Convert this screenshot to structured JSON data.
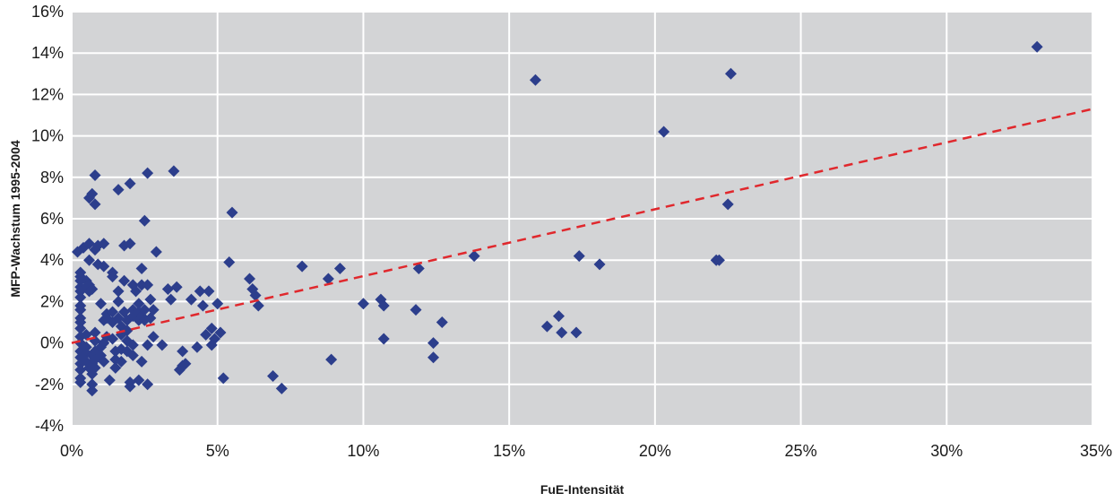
{
  "chart_data": {
    "type": "scatter",
    "title": "",
    "xlabel": "FuE-Intensität",
    "ylabel": "MFP-Wachstum 1995-2004",
    "xlim": [
      0,
      0.35
    ],
    "ylim": [
      -0.04,
      0.16
    ],
    "x_ticks": [
      {
        "value": 0.0,
        "label": "0%"
      },
      {
        "value": 0.05,
        "label": "5%"
      },
      {
        "value": 0.1,
        "label": "10%"
      },
      {
        "value": 0.15,
        "label": "15%"
      },
      {
        "value": 0.2,
        "label": "20%"
      },
      {
        "value": 0.25,
        "label": "25%"
      },
      {
        "value": 0.3,
        "label": "30%"
      },
      {
        "value": 0.35,
        "label": "35%"
      }
    ],
    "y_ticks": [
      {
        "value": -0.04,
        "label": "-4%"
      },
      {
        "value": -0.02,
        "label": "-2%"
      },
      {
        "value": 0.0,
        "label": "0%"
      },
      {
        "value": 0.02,
        "label": "2%"
      },
      {
        "value": 0.04,
        "label": "4%"
      },
      {
        "value": 0.06,
        "label": "6%"
      },
      {
        "value": 0.08,
        "label": "8%"
      },
      {
        "value": 0.1,
        "label": "10%"
      },
      {
        "value": 0.12,
        "label": "12%"
      },
      {
        "value": 0.14,
        "label": "14%"
      },
      {
        "value": 0.16,
        "label": "16%"
      }
    ],
    "grid": "vertical and horizontal",
    "colors": {
      "plot_background": "#d3d4d6",
      "gridline": "#ffffff",
      "marker": "#2c3e8c",
      "trendline": "#e0282d"
    },
    "series": [
      {
        "marker": "diamond",
        "points": [
          [
            0.002,
            0.044
          ],
          [
            0.003,
            0.034
          ],
          [
            0.003,
            0.032
          ],
          [
            0.003,
            0.03
          ],
          [
            0.003,
            0.027
          ],
          [
            0.003,
            0.025
          ],
          [
            0.003,
            0.022
          ],
          [
            0.003,
            0.018
          ],
          [
            0.003,
            0.016
          ],
          [
            0.003,
            0.012
          ],
          [
            0.003,
            0.01
          ],
          [
            0.003,
            0.007
          ],
          [
            0.003,
            0.003
          ],
          [
            0.003,
            0.0
          ],
          [
            0.003,
            -0.004
          ],
          [
            0.003,
            -0.007
          ],
          [
            0.003,
            -0.01
          ],
          [
            0.003,
            -0.013
          ],
          [
            0.003,
            -0.017
          ],
          [
            0.003,
            -0.019
          ],
          [
            0.004,
            0.046
          ],
          [
            0.005,
            0.03
          ],
          [
            0.005,
            0.027
          ],
          [
            0.006,
            0.025
          ],
          [
            0.005,
            0.004
          ],
          [
            0.005,
            -0.002
          ],
          [
            0.005,
            -0.005
          ],
          [
            0.005,
            -0.009
          ],
          [
            0.006,
            -0.012
          ],
          [
            0.006,
            0.048
          ],
          [
            0.006,
            0.04
          ],
          [
            0.006,
            0.028
          ],
          [
            0.007,
            0.026
          ],
          [
            0.006,
            0.07
          ],
          [
            0.007,
            0.072
          ],
          [
            0.007,
            -0.006
          ],
          [
            0.007,
            -0.01
          ],
          [
            0.007,
            -0.015
          ],
          [
            0.007,
            -0.02
          ],
          [
            0.007,
            -0.023
          ],
          [
            0.008,
            0.081
          ],
          [
            0.008,
            0.067
          ],
          [
            0.008,
            0.045
          ],
          [
            0.008,
            0.005
          ],
          [
            0.008,
            0.001
          ],
          [
            0.008,
            -0.004
          ],
          [
            0.008,
            -0.008
          ],
          [
            0.008,
            -0.012
          ],
          [
            0.009,
            0.047
          ],
          [
            0.009,
            0.038
          ],
          [
            0.01,
            0.019
          ],
          [
            0.01,
            -0.002
          ],
          [
            0.01,
            -0.006
          ],
          [
            0.011,
            0.048
          ],
          [
            0.011,
            0.037
          ],
          [
            0.011,
            0.011
          ],
          [
            0.011,
            0.0
          ],
          [
            0.011,
            -0.009
          ],
          [
            0.012,
            0.014
          ],
          [
            0.012,
            0.012
          ],
          [
            0.012,
            0.003
          ],
          [
            0.013,
            -0.018
          ],
          [
            0.014,
            0.034
          ],
          [
            0.014,
            0.032
          ],
          [
            0.014,
            0.015
          ],
          [
            0.014,
            0.01
          ],
          [
            0.014,
            0.002
          ],
          [
            0.015,
            -0.004
          ],
          [
            0.015,
            -0.008
          ],
          [
            0.015,
            -0.012
          ],
          [
            0.016,
            0.074
          ],
          [
            0.016,
            0.025
          ],
          [
            0.016,
            0.02
          ],
          [
            0.016,
            0.012
          ],
          [
            0.017,
            0.008
          ],
          [
            0.017,
            0.004
          ],
          [
            0.017,
            -0.003
          ],
          [
            0.017,
            -0.009
          ],
          [
            0.018,
            0.047
          ],
          [
            0.018,
            0.03
          ],
          [
            0.018,
            0.015
          ],
          [
            0.019,
            0.011
          ],
          [
            0.019,
            0.006
          ],
          [
            0.019,
            0.001
          ],
          [
            0.019,
            -0.004
          ],
          [
            0.02,
            -0.019
          ],
          [
            0.02,
            -0.021
          ],
          [
            0.02,
            0.077
          ],
          [
            0.02,
            0.048
          ],
          [
            0.021,
            0.028
          ],
          [
            0.021,
            0.016
          ],
          [
            0.021,
            0.013
          ],
          [
            0.021,
            -0.001
          ],
          [
            0.021,
            -0.006
          ],
          [
            0.022,
            0.025
          ],
          [
            0.023,
            0.019
          ],
          [
            0.023,
            0.015
          ],
          [
            0.023,
            0.011
          ],
          [
            0.023,
            -0.018
          ],
          [
            0.024,
            0.036
          ],
          [
            0.024,
            0.028
          ],
          [
            0.024,
            0.013
          ],
          [
            0.024,
            -0.009
          ],
          [
            0.025,
            0.059
          ],
          [
            0.025,
            0.016
          ],
          [
            0.025,
            0.011
          ],
          [
            0.026,
            0.028
          ],
          [
            0.026,
            -0.001
          ],
          [
            0.026,
            0.082
          ],
          [
            0.026,
            -0.02
          ],
          [
            0.027,
            0.021
          ],
          [
            0.027,
            0.012
          ],
          [
            0.028,
            0.016
          ],
          [
            0.028,
            0.003
          ],
          [
            0.029,
            0.044
          ],
          [
            0.031,
            -0.001
          ],
          [
            0.033,
            0.026
          ],
          [
            0.034,
            0.021
          ],
          [
            0.035,
            0.083
          ],
          [
            0.036,
            0.027
          ],
          [
            0.037,
            -0.013
          ],
          [
            0.038,
            -0.011
          ],
          [
            0.038,
            -0.004
          ],
          [
            0.039,
            -0.01
          ],
          [
            0.041,
            0.021
          ],
          [
            0.043,
            -0.002
          ],
          [
            0.044,
            0.025
          ],
          [
            0.045,
            0.018
          ],
          [
            0.046,
            0.004
          ],
          [
            0.047,
            0.025
          ],
          [
            0.048,
            0.007
          ],
          [
            0.048,
            -0.001
          ],
          [
            0.049,
            0.002
          ],
          [
            0.05,
            0.019
          ],
          [
            0.051,
            0.005
          ],
          [
            0.052,
            -0.017
          ],
          [
            0.054,
            0.039
          ],
          [
            0.055,
            0.063
          ],
          [
            0.061,
            0.031
          ],
          [
            0.062,
            0.026
          ],
          [
            0.063,
            0.023
          ],
          [
            0.064,
            0.018
          ],
          [
            0.069,
            -0.016
          ],
          [
            0.072,
            -0.022
          ],
          [
            0.079,
            0.037
          ],
          [
            0.088,
            0.031
          ],
          [
            0.089,
            -0.008
          ],
          [
            0.092,
            0.036
          ],
          [
            0.1,
            0.019
          ],
          [
            0.106,
            0.021
          ],
          [
            0.107,
            0.018
          ],
          [
            0.107,
            0.002
          ],
          [
            0.118,
            0.016
          ],
          [
            0.119,
            0.036
          ],
          [
            0.124,
            0.0
          ],
          [
            0.124,
            -0.007
          ],
          [
            0.127,
            0.01
          ],
          [
            0.138,
            0.042
          ],
          [
            0.159,
            0.127
          ],
          [
            0.163,
            0.008
          ],
          [
            0.167,
            0.013
          ],
          [
            0.168,
            0.005
          ],
          [
            0.173,
            0.005
          ],
          [
            0.174,
            0.042
          ],
          [
            0.181,
            0.038
          ],
          [
            0.203,
            0.102
          ],
          [
            0.221,
            0.04
          ],
          [
            0.222,
            0.04
          ],
          [
            0.225,
            0.067
          ],
          [
            0.226,
            0.13
          ],
          [
            0.331,
            0.143
          ]
        ]
      }
    ],
    "trendline": {
      "style": "dashed",
      "from": [
        0.0,
        0.0
      ],
      "to": [
        0.35,
        0.113
      ]
    }
  }
}
